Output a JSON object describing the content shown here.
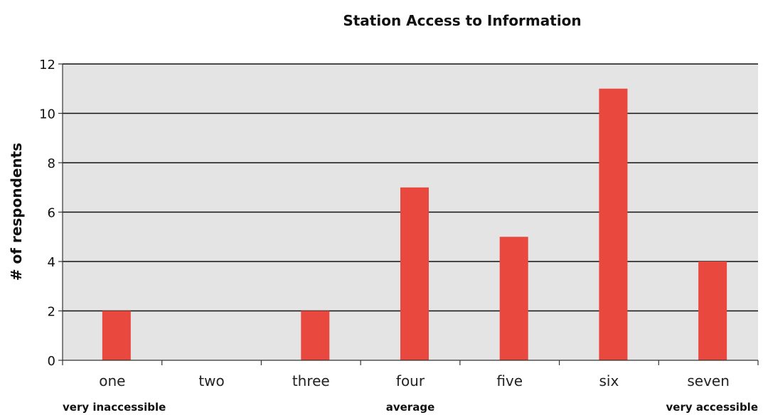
{
  "chart_data": {
    "type": "bar",
    "title": "Station Access to Information",
    "ylabel": "# of respondents",
    "xlabel": "",
    "categories": [
      "one",
      "two",
      "three",
      "four",
      "five",
      "six",
      "seven"
    ],
    "values": [
      2,
      0,
      2,
      7,
      5,
      11,
      4
    ],
    "ylim": [
      0,
      12
    ],
    "yticks": [
      0,
      2,
      4,
      6,
      8,
      10,
      12
    ],
    "grid": true,
    "scale_annotations": [
      {
        "category": "one",
        "text": "very inaccessible"
      },
      {
        "category": "four",
        "text": "average"
      },
      {
        "category": "seven",
        "text": "very accessible"
      }
    ],
    "colors": {
      "bar": "#e8483e",
      "plot_background": "#e4e4e4",
      "grid": "#111111",
      "axis": "#333333"
    }
  }
}
